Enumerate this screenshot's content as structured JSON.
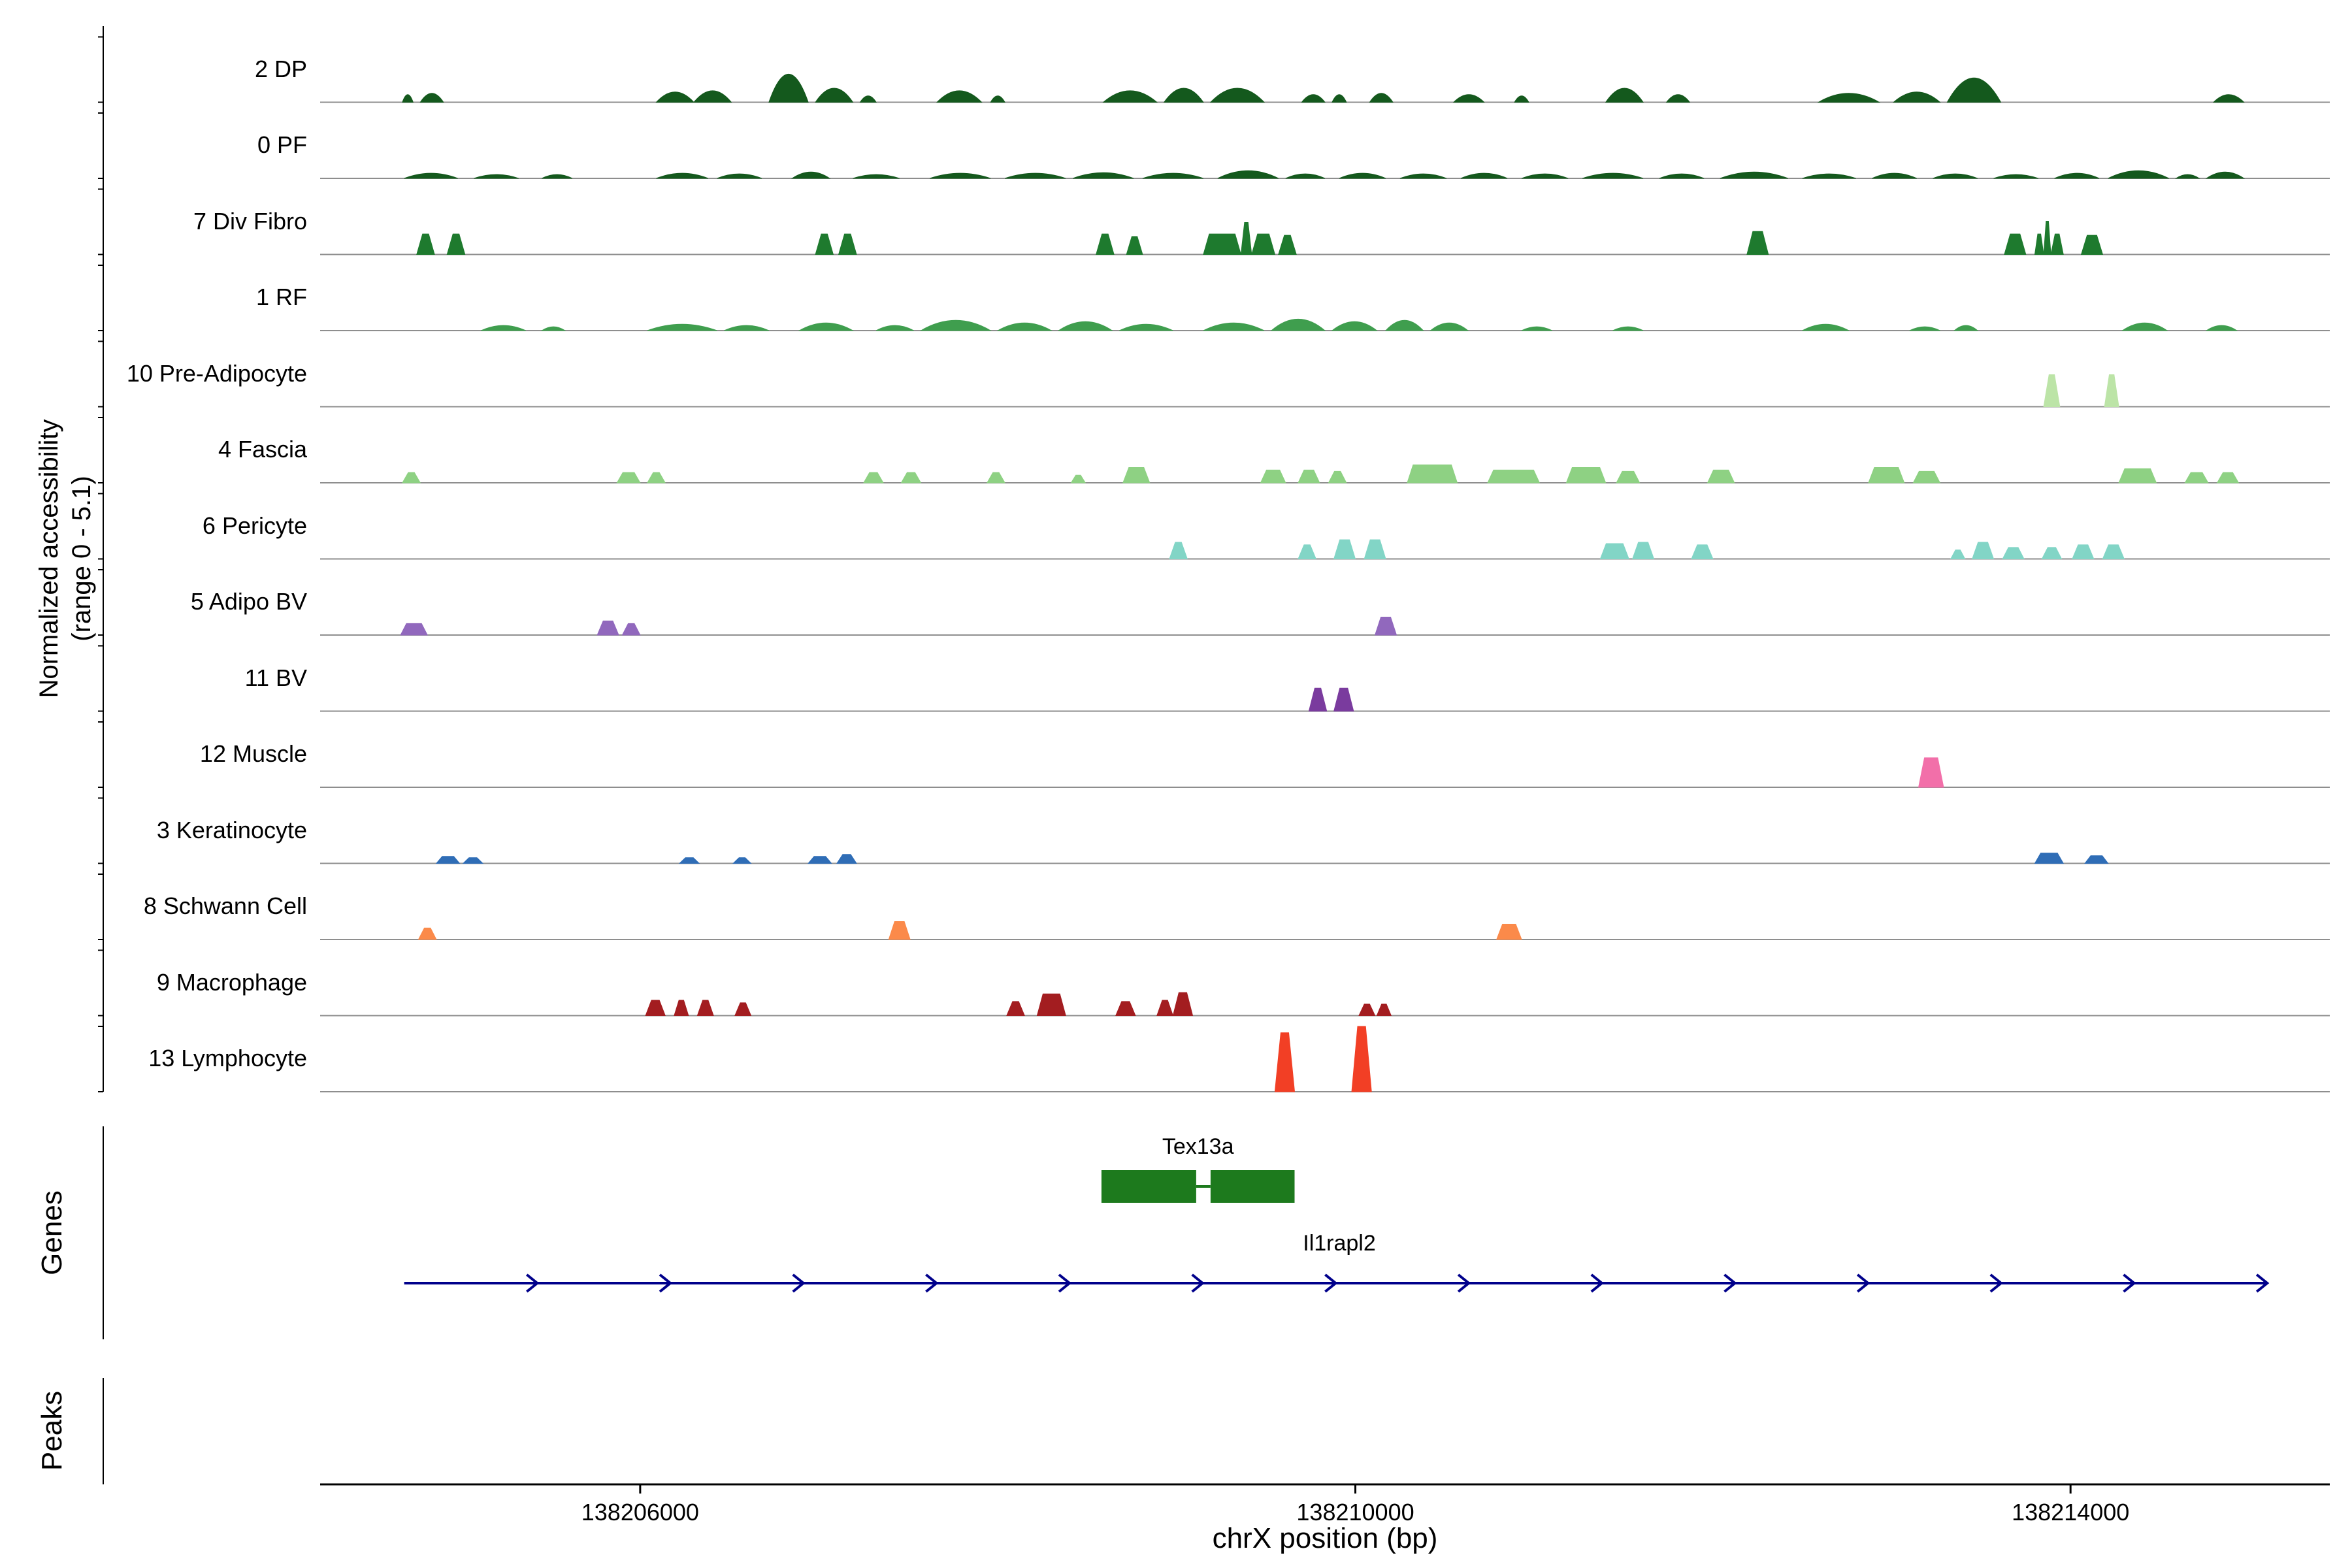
{
  "y_axis": {
    "line1": "Normalized accessibility",
    "line2": "(range 0 - 5.1)"
  },
  "sections": {
    "genes": "Genes",
    "peaks": "Peaks"
  },
  "x_axis": {
    "label": "chrX position (bp)",
    "ticks": [
      "138206000",
      "138210000",
      "138214000"
    ],
    "tick_values": [
      138206000,
      138210000,
      138214000
    ]
  },
  "chart_data": {
    "type": "area",
    "title": "",
    "xlabel": "chrX position (bp)",
    "ylabel": "Normalized accessibility (range 0 - 5.1)",
    "x_range_bp": [
      138204210,
      138215450
    ],
    "y_range": [
      0,
      5.1
    ],
    "tracks": [
      {
        "label": "2 DP",
        "color": "#14591d",
        "shape": "bump",
        "peaks": [
          [
            138204670,
            138204730,
            0.6
          ],
          [
            138204770,
            138204900,
            0.7
          ],
          [
            138206090,
            138206300,
            0.8
          ],
          [
            138206300,
            138206510,
            0.9
          ],
          [
            138206720,
            138206940,
            2.2
          ],
          [
            138206980,
            138207190,
            1.1
          ],
          [
            138207230,
            138207320,
            0.5
          ],
          [
            138207660,
            138207910,
            0.9
          ],
          [
            138207960,
            138208040,
            0.5
          ],
          [
            138208590,
            138208890,
            0.9
          ],
          [
            138208930,
            138209150,
            1.1
          ],
          [
            138209190,
            138209490,
            1.1
          ],
          [
            138209700,
            138209830,
            0.6
          ],
          [
            138209870,
            138209950,
            0.6
          ],
          [
            138210080,
            138210210,
            0.7
          ],
          [
            138210550,
            138210720,
            0.6
          ],
          [
            138210890,
            138210970,
            0.5
          ],
          [
            138211400,
            138211610,
            1.1
          ],
          [
            138211740,
            138211870,
            0.6
          ],
          [
            138212590,
            138212930,
            0.7
          ],
          [
            138213010,
            138213270,
            0.8
          ],
          [
            138213310,
            138213610,
            1.9
          ],
          [
            138214800,
            138214970,
            0.6
          ]
        ]
      },
      {
        "label": "0 PF",
        "color": "#14591d",
        "shape": "bump",
        "peaks": [
          [
            138204680,
            138204980,
            0.4
          ],
          [
            138205070,
            138205320,
            0.3
          ],
          [
            138205450,
            138205620,
            0.3
          ],
          [
            138206090,
            138206380,
            0.4
          ],
          [
            138206430,
            138206680,
            0.35
          ],
          [
            138206850,
            138207060,
            0.5
          ],
          [
            138207190,
            138207450,
            0.3
          ],
          [
            138207620,
            138207960,
            0.4
          ],
          [
            138208040,
            138208380,
            0.4
          ],
          [
            138208420,
            138208760,
            0.45
          ],
          [
            138208810,
            138209150,
            0.4
          ],
          [
            138209230,
            138209570,
            0.6
          ],
          [
            138209610,
            138209830,
            0.35
          ],
          [
            138209910,
            138210170,
            0.4
          ],
          [
            138210250,
            138210510,
            0.35
          ],
          [
            138210590,
            138210850,
            0.4
          ],
          [
            138210930,
            138211190,
            0.35
          ],
          [
            138211270,
            138211610,
            0.4
          ],
          [
            138211700,
            138211950,
            0.35
          ],
          [
            138212040,
            138212420,
            0.5
          ],
          [
            138212500,
            138212800,
            0.35
          ],
          [
            138212890,
            138213140,
            0.4
          ],
          [
            138213230,
            138213480,
            0.35
          ],
          [
            138213570,
            138213820,
            0.3
          ],
          [
            138213910,
            138214160,
            0.4
          ],
          [
            138214210,
            138214550,
            0.6
          ],
          [
            138214590,
            138214720,
            0.3
          ],
          [
            138214760,
            138214970,
            0.5
          ]
        ]
      },
      {
        "label": "7 Div Fibro",
        "color": "#1e7a2e",
        "shape": "block",
        "peaks": [
          [
            138204750,
            138204850,
            1.6
          ],
          [
            138204920,
            138205020,
            1.6
          ],
          [
            138206980,
            138207080,
            1.6
          ],
          [
            138207110,
            138207210,
            1.6
          ],
          [
            138208550,
            138208650,
            1.6
          ],
          [
            138208720,
            138208810,
            1.4
          ],
          [
            138209150,
            138209360,
            1.6
          ],
          [
            138209360,
            138209420,
            2.5
          ],
          [
            138209420,
            138209550,
            1.6
          ],
          [
            138209570,
            138209670,
            1.5
          ],
          [
            138212190,
            138212310,
            1.8
          ],
          [
            138213630,
            138213750,
            1.6
          ],
          [
            138213800,
            138213850,
            1.6
          ],
          [
            138213850,
            138213890,
            2.6
          ],
          [
            138213890,
            138213960,
            1.6
          ],
          [
            138214060,
            138214180,
            1.5
          ]
        ]
      },
      {
        "label": "1 RF",
        "color": "#3f9e4e",
        "shape": "bump",
        "peaks": [
          [
            138205110,
            138205360,
            0.4
          ],
          [
            138205450,
            138205580,
            0.3
          ],
          [
            138206040,
            138206430,
            0.5
          ],
          [
            138206470,
            138206720,
            0.4
          ],
          [
            138206890,
            138207190,
            0.6
          ],
          [
            138207320,
            138207530,
            0.4
          ],
          [
            138207570,
            138207960,
            0.8
          ],
          [
            138208000,
            138208300,
            0.6
          ],
          [
            138208340,
            138208640,
            0.7
          ],
          [
            138208680,
            138208980,
            0.5
          ],
          [
            138209150,
            138209490,
            0.6
          ],
          [
            138209530,
            138209830,
            0.9
          ],
          [
            138209870,
            138210120,
            0.7
          ],
          [
            138210170,
            138210380,
            0.8
          ],
          [
            138210420,
            138210630,
            0.6
          ],
          [
            138210930,
            138211100,
            0.3
          ],
          [
            138211440,
            138211610,
            0.3
          ],
          [
            138212500,
            138212760,
            0.5
          ],
          [
            138213100,
            138213270,
            0.3
          ],
          [
            138213350,
            138213480,
            0.4
          ],
          [
            138214290,
            138214540,
            0.6
          ],
          [
            138214760,
            138214930,
            0.4
          ]
        ]
      },
      {
        "label": "10 Pre-Adipocyte",
        "color": "#bce4a7",
        "shape": "block",
        "peaks": [
          [
            138213850,
            138213940,
            2.5
          ],
          [
            138214190,
            138214270,
            2.5
          ]
        ]
      },
      {
        "label": "4 Fascia",
        "color": "#8ed183",
        "shape": "block",
        "peaks": [
          [
            138204670,
            138204770,
            0.8
          ],
          [
            138205870,
            138206000,
            0.8
          ],
          [
            138206040,
            138206140,
            0.8
          ],
          [
            138207250,
            138207360,
            0.8
          ],
          [
            138207460,
            138207570,
            0.8
          ],
          [
            138207940,
            138208040,
            0.8
          ],
          [
            138208410,
            138208490,
            0.6
          ],
          [
            138208700,
            138208850,
            1.2
          ],
          [
            138209470,
            138209610,
            1.0
          ],
          [
            138209680,
            138209800,
            1.0
          ],
          [
            138209850,
            138209950,
            0.9
          ],
          [
            138210290,
            138210570,
            1.4
          ],
          [
            138210740,
            138211030,
            1.0
          ],
          [
            138211180,
            138211400,
            1.2
          ],
          [
            138211460,
            138211590,
            0.9
          ],
          [
            138211970,
            138212120,
            1.0
          ],
          [
            138212870,
            138213070,
            1.2
          ],
          [
            138213120,
            138213270,
            0.9
          ],
          [
            138214270,
            138214480,
            1.1
          ],
          [
            138214640,
            138214770,
            0.8
          ],
          [
            138214820,
            138214940,
            0.8
          ]
        ]
      },
      {
        "label": "6 Pericyte",
        "color": "#82d5c6",
        "shape": "block",
        "peaks": [
          [
            138208960,
            138209060,
            1.3
          ],
          [
            138209680,
            138209780,
            1.1
          ],
          [
            138209880,
            138210000,
            1.5
          ],
          [
            138210050,
            138210170,
            1.5
          ],
          [
            138211370,
            138211530,
            1.2
          ],
          [
            138211550,
            138211670,
            1.3
          ],
          [
            138211880,
            138212000,
            1.1
          ],
          [
            138213330,
            138213410,
            0.7
          ],
          [
            138213450,
            138213570,
            1.3
          ],
          [
            138213620,
            138213740,
            0.9
          ],
          [
            138213840,
            138213950,
            0.9
          ],
          [
            138214010,
            138214130,
            1.1
          ],
          [
            138214180,
            138214300,
            1.1
          ]
        ]
      },
      {
        "label": "5 Adipo BV",
        "color": "#9168bd",
        "shape": "block",
        "peaks": [
          [
            138204660,
            138204810,
            0.9
          ],
          [
            138205760,
            138205880,
            1.1
          ],
          [
            138205900,
            138206000,
            0.9
          ],
          [
            138210110,
            138210230,
            1.4
          ]
        ]
      },
      {
        "label": "11 BV",
        "color": "#7a3b9e",
        "shape": "block",
        "peaks": [
          [
            138209740,
            138209840,
            1.8
          ],
          [
            138209880,
            138209990,
            1.8
          ]
        ]
      },
      {
        "label": "12 Muscle",
        "color": "#f26fa9",
        "shape": "block",
        "peaks": [
          [
            138213150,
            138213290,
            2.3
          ]
        ]
      },
      {
        "label": "3 Keratinocyte",
        "color": "#2f6db6",
        "shape": "block",
        "peaks": [
          [
            138204860,
            138204990,
            0.55
          ],
          [
            138205010,
            138205120,
            0.45
          ],
          [
            138206220,
            138206330,
            0.45
          ],
          [
            138206520,
            138206620,
            0.45
          ],
          [
            138206940,
            138207070,
            0.55
          ],
          [
            138207100,
            138207210,
            0.7
          ],
          [
            138213800,
            138213960,
            0.8
          ],
          [
            138214080,
            138214210,
            0.6
          ]
        ]
      },
      {
        "label": "8 Schwann Cell",
        "color": "#fb8a4a",
        "shape": "block",
        "peaks": [
          [
            138204760,
            138204860,
            0.9
          ],
          [
            138207390,
            138207510,
            1.4
          ],
          [
            138210790,
            138210930,
            1.2
          ]
        ]
      },
      {
        "label": "9 Macrophage",
        "color": "#a31d20",
        "shape": "block",
        "peaks": [
          [
            138206030,
            138206140,
            1.2
          ],
          [
            138206190,
            138206270,
            1.2
          ],
          [
            138206320,
            138206410,
            1.2
          ],
          [
            138206530,
            138206620,
            1.0
          ],
          [
            138208050,
            138208150,
            1.1
          ],
          [
            138208220,
            138208380,
            1.7
          ],
          [
            138208660,
            138208770,
            1.1
          ],
          [
            138208890,
            138208980,
            1.2
          ],
          [
            138208980,
            138209090,
            1.8
          ],
          [
            138210020,
            138210110,
            0.9
          ],
          [
            138210120,
            138210200,
            0.9
          ]
        ]
      },
      {
        "label": "13 Lymphocyte",
        "color": "#f23f25",
        "shape": "block",
        "peaks": [
          [
            138209550,
            138209660,
            4.6
          ],
          [
            138209980,
            138210090,
            5.1
          ]
        ]
      }
    ],
    "genes": [
      {
        "name": "Tex13a",
        "color": "#1d7a1d",
        "exons_bp": [
          [
            138208580,
            138209110
          ],
          [
            138209190,
            138209660
          ]
        ]
      },
      {
        "name": "Il1rapl2",
        "color": "#00008b",
        "start_bp": 138204680,
        "end_bp": 138215100,
        "strand": "+"
      }
    ]
  }
}
